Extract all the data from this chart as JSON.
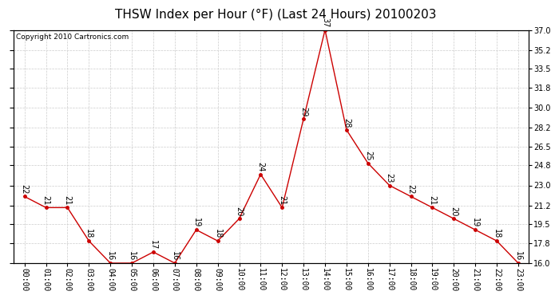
{
  "title": "THSW Index per Hour (°F) (Last 24 Hours) 20100203",
  "copyright": "Copyright 2010 Cartronics.com",
  "hours": [
    "00:00",
    "01:00",
    "02:00",
    "03:00",
    "04:00",
    "05:00",
    "06:00",
    "07:00",
    "08:00",
    "09:00",
    "10:00",
    "11:00",
    "12:00",
    "13:00",
    "14:00",
    "15:00",
    "16:00",
    "17:00",
    "18:00",
    "19:00",
    "20:00",
    "21:00",
    "22:00",
    "23:00"
  ],
  "values": [
    22,
    21,
    21,
    18,
    16,
    16,
    17,
    16,
    19,
    18,
    20,
    24,
    21,
    29,
    37,
    28,
    25,
    23,
    22,
    21,
    20,
    19,
    18,
    16
  ],
  "line_color": "#cc0000",
  "marker_color": "#cc0000",
  "bg_color": "#ffffff",
  "grid_color": "#cccccc",
  "title_color": "#000000",
  "ylim": [
    16.0,
    37.0
  ],
  "yticks": [
    16.0,
    17.8,
    19.5,
    21.2,
    23.0,
    24.8,
    26.5,
    28.2,
    30.0,
    31.8,
    33.5,
    35.2,
    37.0
  ],
  "ytick_labels": [
    "16.0",
    "17.8",
    "19.5",
    "21.2",
    "23.0",
    "24.8",
    "26.5",
    "28.2",
    "30.0",
    "31.8",
    "33.5",
    "35.2",
    "37.0"
  ],
  "title_fontsize": 11,
  "label_fontsize": 7,
  "copyright_fontsize": 6.5,
  "annotation_fontsize": 7
}
